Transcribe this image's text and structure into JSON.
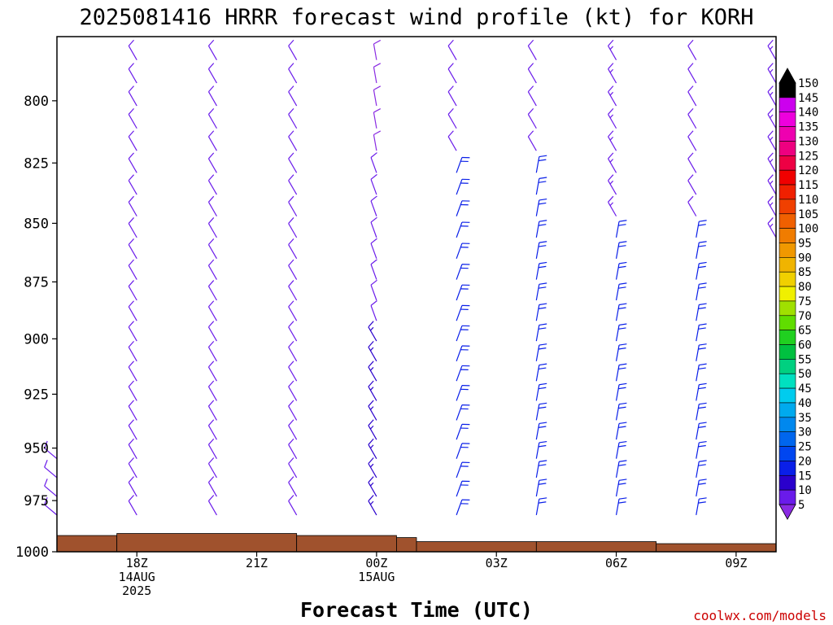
{
  "chart_data": {
    "type": "wind-barb-profile",
    "title": "2025081416 HRRR forecast wind profile (kt) for KORH",
    "xlabel": "Forecast Time (UTC)",
    "ylabel": "",
    "units": "kt",
    "credit": "coolwx.com/models",
    "y_axis": {
      "scale": "pressure-hPa",
      "ylim": [
        1000,
        775
      ],
      "ticks": [
        800,
        825,
        850,
        875,
        900,
        925,
        950,
        975,
        1000
      ]
    },
    "x_axis": {
      "xlim_hours_utc": [
        16.0,
        34.0
      ],
      "ticks": [
        {
          "hour": 18,
          "lines": [
            "18Z",
            "14AUG",
            "2025"
          ]
        },
        {
          "hour": 21,
          "lines": [
            "21Z"
          ]
        },
        {
          "hour": 24,
          "lines": [
            "00Z",
            "15AUG"
          ]
        },
        {
          "hour": 27,
          "lines": [
            "03Z"
          ]
        },
        {
          "hour": 30,
          "lines": [
            "06Z"
          ]
        },
        {
          "hour": 33,
          "lines": [
            "09Z"
          ]
        }
      ]
    },
    "colorbar": {
      "levels": [
        5,
        10,
        15,
        20,
        25,
        30,
        35,
        40,
        45,
        50,
        55,
        60,
        65,
        70,
        75,
        80,
        85,
        90,
        95,
        100,
        105,
        110,
        115,
        120,
        125,
        130,
        135,
        140,
        145,
        150
      ],
      "colors": [
        "#8a2be2",
        "#6a1bea",
        "#2a00cc",
        "#0a1fe8",
        "#0046f0",
        "#0066ee",
        "#0088ee",
        "#00aaee",
        "#00ccee",
        "#00e0c0",
        "#00d080",
        "#00c040",
        "#20d020",
        "#60dd00",
        "#a0e000",
        "#f0f000",
        "#f0d000",
        "#f0b400",
        "#f09800",
        "#f07c00",
        "#f06000",
        "#f04000",
        "#f02000",
        "#f00000",
        "#ee0044",
        "#ee0080",
        "#ee00b0",
        "#ee00dd",
        "#cc00ee",
        "#000000"
      ]
    },
    "surface_pressure_hpa": [
      {
        "start_hour": 16.0,
        "end_hour": 17.5,
        "pressure": 992
      },
      {
        "start_hour": 17.5,
        "end_hour": 22.0,
        "pressure": 991
      },
      {
        "start_hour": 22.0,
        "end_hour": 24.5,
        "pressure": 992
      },
      {
        "start_hour": 24.5,
        "end_hour": 25.0,
        "pressure": 993
      },
      {
        "start_hour": 25.0,
        "end_hour": 28.0,
        "pressure": 995
      },
      {
        "start_hour": 28.0,
        "end_hour": 31.0,
        "pressure": 995
      },
      {
        "start_hour": 31.0,
        "end_hour": 34.0,
        "pressure": 996
      }
    ],
    "barb_levels_hpa": [
      775,
      784,
      793,
      802,
      811,
      820,
      829,
      838,
      847,
      856,
      865,
      874,
      883,
      892,
      901,
      910,
      919,
      928,
      937,
      946,
      955,
      964,
      973,
      982
    ],
    "series": [
      {
        "hour": 16,
        "layers": [
          {
            "from": 948,
            "to": 982,
            "dir": 310,
            "spd": 10
          }
        ]
      },
      {
        "hour": 18,
        "layers": [
          {
            "from": 775,
            "to": 982,
            "dir": 330,
            "spd": 10
          }
        ]
      },
      {
        "hour": 20,
        "layers": [
          {
            "from": 775,
            "to": 982,
            "dir": 330,
            "spd": 10
          }
        ]
      },
      {
        "hour": 22,
        "layers": [
          {
            "from": 775,
            "to": 982,
            "dir": 330,
            "spd": 10
          }
        ]
      },
      {
        "hour": 24,
        "layers": [
          {
            "from": 775,
            "to": 820,
            "dir": 350,
            "spd": 8
          },
          {
            "from": 821,
            "to": 900,
            "dir": 340,
            "spd": 11
          },
          {
            "from": 901,
            "to": 982,
            "dir": 330,
            "spd": 16
          }
        ]
      },
      {
        "hour": 26,
        "layers": [
          {
            "from": 775,
            "to": 820,
            "dir": 330,
            "spd": 11
          },
          {
            "from": 821,
            "to": 982,
            "dir": 20,
            "spd": 22
          }
        ]
      },
      {
        "hour": 28,
        "layers": [
          {
            "from": 775,
            "to": 820,
            "dir": 330,
            "spd": 11
          },
          {
            "from": 821,
            "to": 982,
            "dir": 10,
            "spd": 22
          }
        ]
      },
      {
        "hour": 30,
        "layers": [
          {
            "from": 775,
            "to": 850,
            "dir": 330,
            "spd": 14
          },
          {
            "from": 851,
            "to": 982,
            "dir": 10,
            "spd": 22
          }
        ]
      },
      {
        "hour": 32,
        "layers": [
          {
            "from": 775,
            "to": 850,
            "dir": 330,
            "spd": 10
          },
          {
            "from": 851,
            "to": 982,
            "dir": 10,
            "spd": 22
          }
        ]
      },
      {
        "hour": 34,
        "layers": [
          {
            "from": 775,
            "to": 860,
            "dir": 330,
            "spd": 14
          }
        ]
      }
    ]
  }
}
